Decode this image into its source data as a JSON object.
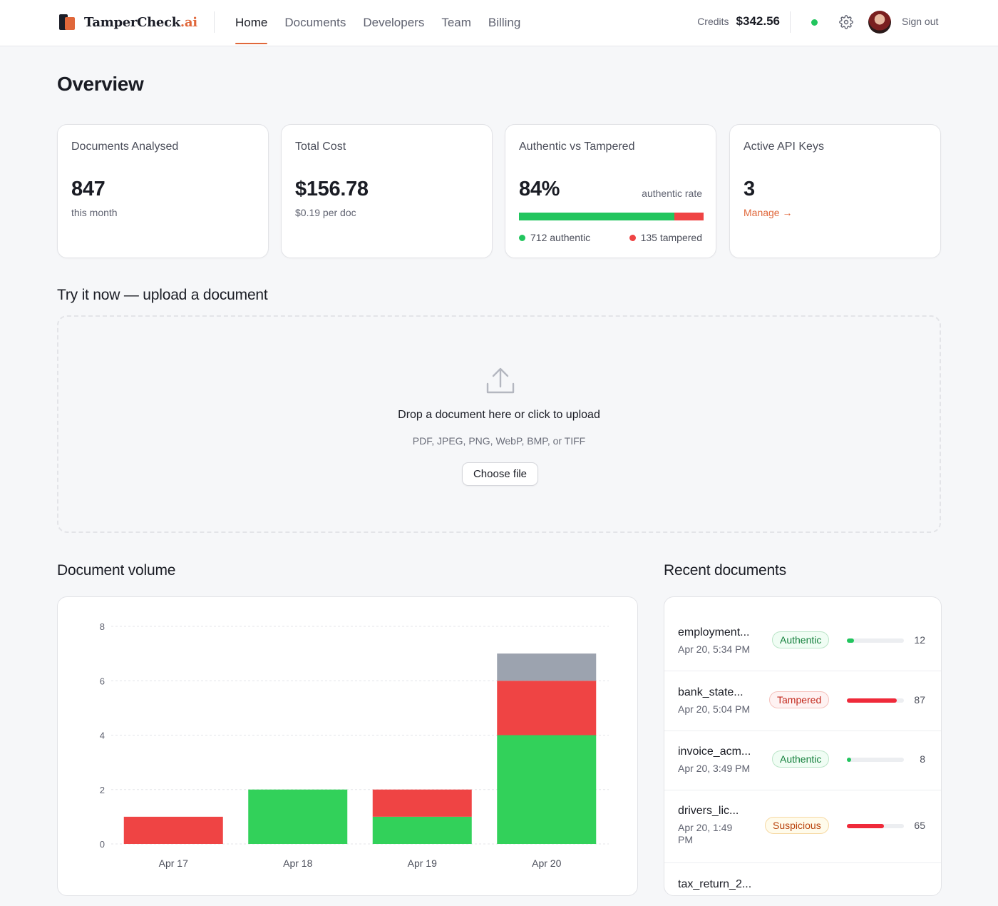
{
  "header": {
    "brand_main": "TamperCheck",
    "brand_suffix": ".ai",
    "nav": [
      {
        "label": "Home",
        "active": true
      },
      {
        "label": "Documents",
        "active": false
      },
      {
        "label": "Developers",
        "active": false
      },
      {
        "label": "Team",
        "active": false
      },
      {
        "label": "Billing",
        "active": false
      }
    ],
    "credits_label": "Credits",
    "credits_value": "$342.56",
    "status_color": "#22c55e",
    "settings_icon": "gear-icon",
    "sign_out": "Sign out"
  },
  "page_title": "Overview",
  "stats": {
    "docs": {
      "title": "Documents Analysed",
      "value": "847",
      "sub": "this month"
    },
    "cost": {
      "title": "Total Cost",
      "value": "$156.78",
      "sub": "$0.19 per doc"
    },
    "ratio": {
      "title": "Authentic vs Tampered",
      "value": "84%",
      "right_label": "authentic rate",
      "authentic_fraction": 0.84,
      "authentic_label": "712 authentic",
      "tampered_label": "135 tampered"
    },
    "keys": {
      "title": "Active API Keys",
      "value": "3",
      "link": "Manage →"
    }
  },
  "upload": {
    "heading": "Try it now — upload a document",
    "title": "Drop a document here or click to upload",
    "formats": "PDF, JPEG, PNG, WebP, BMP, or TIFF",
    "button": "Choose file",
    "icon": "upload-icon"
  },
  "volume": {
    "heading": "Document volume"
  },
  "chart_data": {
    "type": "bar",
    "stacked": true,
    "categories": [
      "Apr 17",
      "Apr 18",
      "Apr 19",
      "Apr 20"
    ],
    "series": [
      {
        "color": "#32d15a",
        "values": [
          0,
          2,
          1,
          4
        ]
      },
      {
        "color": "#ef4444",
        "values": [
          1,
          0,
          1,
          2
        ]
      },
      {
        "color": "#9ca3af",
        "values": [
          0,
          0,
          0,
          1
        ]
      }
    ],
    "ylim": [
      0,
      8
    ],
    "yticks": [
      "0",
      "2",
      "4",
      "6",
      "8"
    ],
    "grid": true
  },
  "recent": {
    "heading": "Recent documents",
    "items": [
      {
        "name": "employment...",
        "date": "Apr 20, 5:34 PM",
        "status": "Authentic",
        "kind": "authentic",
        "score": "12",
        "fill": 0.12,
        "color": "#22c55e"
      },
      {
        "name": "bank_state...",
        "date": "Apr 20, 5:04 PM",
        "status": "Tampered",
        "kind": "tampered",
        "score": "87",
        "fill": 0.87,
        "color": "#ef2a3a"
      },
      {
        "name": "invoice_acm...",
        "date": "Apr 20, 3:49 PM",
        "status": "Authentic",
        "kind": "authentic",
        "score": "8",
        "fill": 0.08,
        "color": "#22c55e"
      },
      {
        "name": "drivers_lic...",
        "date": "Apr 20, 1:49 PM",
        "status": "Suspicious",
        "kind": "suspicious",
        "score": "65",
        "fill": 0.65,
        "color": "#ef2a3a"
      },
      {
        "name": "tax_return_2...",
        "date": "",
        "status": "",
        "kind": "",
        "score": "",
        "fill": 0,
        "color": "#22c55e"
      }
    ]
  }
}
